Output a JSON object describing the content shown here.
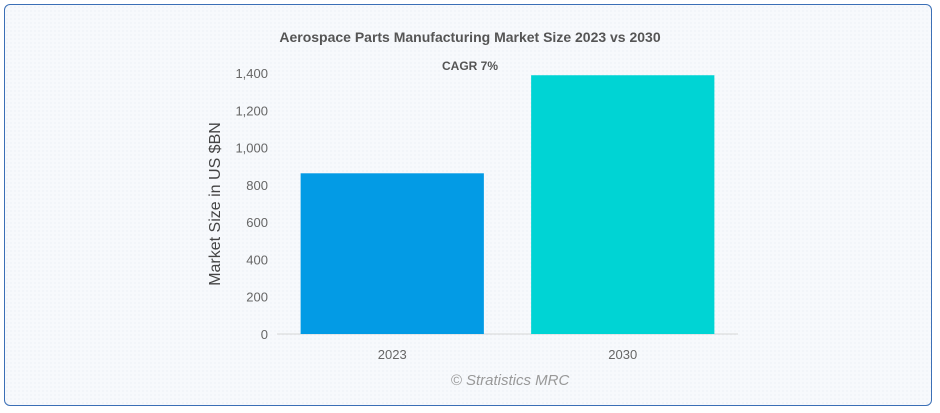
{
  "chart_data": {
    "type": "bar",
    "title": "Aerospace Parts Manufacturing Market Size 2023 vs 2030",
    "subtitle": "CAGR 7%",
    "categories": [
      "2023",
      "2030"
    ],
    "values": [
      862,
      1388
    ],
    "colors": [
      "#039be5",
      "#00d4d4"
    ],
    "ylabel": "Market Size in US $BN",
    "xlabel": "",
    "ylim": [
      0,
      1400
    ],
    "yticks": [
      0,
      200,
      400,
      600,
      800,
      1000,
      1200,
      1400
    ],
    "ytick_labels": [
      "0",
      "200",
      "400",
      "600",
      "800",
      "1,000",
      "1,200",
      "1,400"
    ],
    "grid": false,
    "legend": "none"
  },
  "credit": "© Stratistics MRC"
}
